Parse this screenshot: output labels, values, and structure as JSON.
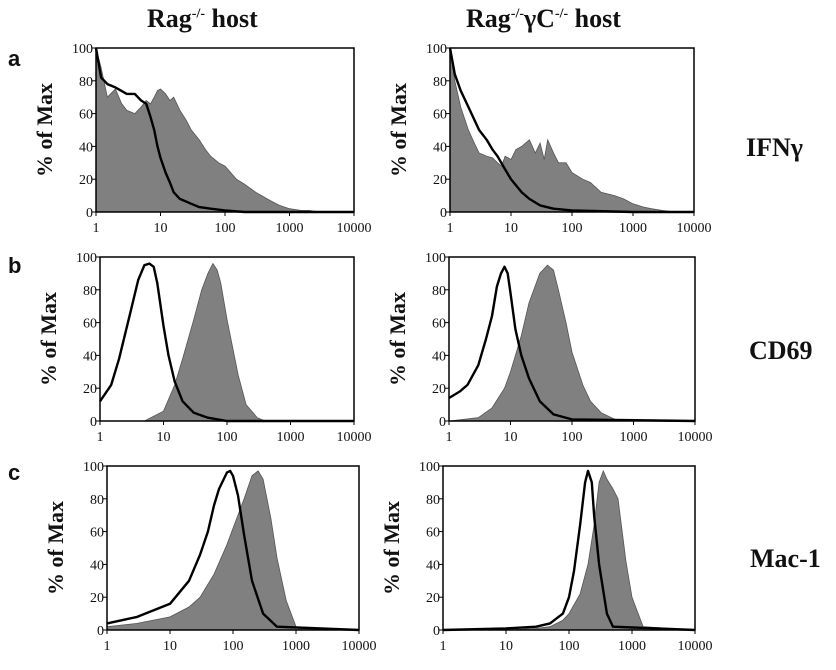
{
  "figure": {
    "column_titles": [
      {
        "base": "Rag",
        "sup": "-/-",
        "rest": " host"
      },
      {
        "base": "Rag",
        "sup": "-/-",
        "mid": "γC",
        "sup2": "-/-",
        "rest": " host"
      }
    ],
    "row_labels": [
      "IFNγ",
      "CD69",
      "Mac-1"
    ],
    "panel_letters": [
      "a",
      "b",
      "c"
    ],
    "ylabel": "% of Max",
    "colors": {
      "filled": "#808080",
      "line": "#000000"
    }
  },
  "chart_data": [
    {
      "panel": "a",
      "row": "IFNγ",
      "column": "Rag-/- host",
      "type": "area",
      "xscale": "log",
      "xlim": [
        1,
        10000
      ],
      "ylim": [
        0,
        100
      ],
      "xticks": [
        "1",
        "10",
        "100",
        "1000",
        "10000"
      ],
      "yticks": [
        "0",
        "20",
        "40",
        "60",
        "80",
        "100"
      ],
      "ylabel": "% of Max",
      "filled": {
        "x": [
          1,
          1.2,
          1.5,
          2,
          2.5,
          3,
          4,
          5,
          6,
          7,
          8,
          9,
          10,
          12,
          14,
          16,
          20,
          25,
          30,
          40,
          50,
          60,
          80,
          100,
          150,
          200,
          300,
          500,
          700,
          1000,
          1500,
          2000,
          3000,
          5000,
          10000
        ],
        "y": [
          100,
          88,
          70,
          75,
          66,
          62,
          60,
          64,
          68,
          66,
          70,
          74,
          75,
          72,
          68,
          70,
          62,
          56,
          50,
          44,
          38,
          34,
          30,
          28,
          20,
          17,
          12,
          7,
          4,
          2,
          1,
          1,
          0,
          0,
          0
        ]
      },
      "line": {
        "x": [
          1,
          1.2,
          1.5,
          2,
          3,
          4,
          5,
          6,
          7,
          8,
          9,
          10,
          12,
          14,
          16,
          20,
          30,
          40,
          60,
          100,
          200,
          1000,
          10000
        ],
        "y": [
          100,
          82,
          78,
          76,
          72,
          72,
          68,
          66,
          58,
          50,
          40,
          33,
          24,
          18,
          12,
          8,
          5,
          3,
          2,
          1,
          0,
          0,
          0
        ]
      }
    },
    {
      "panel": "a",
      "row": "IFNγ",
      "column": "Rag-/-γC-/- host",
      "type": "area",
      "xscale": "log",
      "xlim": [
        1,
        10000
      ],
      "ylim": [
        0,
        100
      ],
      "xticks": [
        "1",
        "10",
        "100",
        "1000",
        "10000"
      ],
      "yticks": [
        "0",
        "20",
        "40",
        "60",
        "80",
        "100"
      ],
      "ylabel": "% of Max",
      "filled": {
        "x": [
          1,
          1.2,
          1.5,
          2,
          2.5,
          3,
          4,
          5,
          6,
          7,
          8,
          10,
          12,
          15,
          20,
          25,
          30,
          35,
          40,
          50,
          60,
          80,
          100,
          150,
          200,
          300,
          500,
          700,
          1000,
          1500,
          2000,
          3000,
          5000,
          10000
        ],
        "y": [
          100,
          80,
          64,
          50,
          42,
          36,
          34,
          33,
          30,
          28,
          34,
          32,
          38,
          40,
          44,
          36,
          42,
          32,
          44,
          36,
          30,
          30,
          24,
          20,
          18,
          12,
          10,
          8,
          5,
          3,
          2,
          1,
          0,
          0
        ]
      },
      "line": {
        "x": [
          1,
          1.2,
          1.5,
          2,
          3,
          4,
          5,
          6,
          8,
          10,
          15,
          20,
          30,
          50,
          100,
          1000,
          10000
        ],
        "y": [
          100,
          84,
          74,
          64,
          50,
          44,
          38,
          34,
          26,
          20,
          12,
          8,
          4,
          2,
          1,
          0,
          0
        ]
      }
    },
    {
      "panel": "b",
      "row": "CD69",
      "column": "Rag-/- host",
      "type": "area",
      "xscale": "log",
      "xlim": [
        1,
        10000
      ],
      "ylim": [
        0,
        100
      ],
      "xticks": [
        "1",
        "10",
        "100",
        "1000",
        "10000"
      ],
      "yticks": [
        "0",
        "20",
        "40",
        "60",
        "80",
        "100"
      ],
      "ylabel": "% of Max",
      "filled": {
        "x": [
          1,
          5,
          10,
          15,
          20,
          30,
          40,
          50,
          60,
          70,
          80,
          100,
          150,
          200,
          300,
          400,
          10000
        ],
        "y": [
          0,
          0,
          6,
          22,
          38,
          62,
          80,
          90,
          96,
          92,
          84,
          62,
          28,
          10,
          2,
          0,
          0
        ]
      },
      "line": {
        "x": [
          1,
          1.5,
          2,
          3,
          4,
          5,
          6,
          7,
          8,
          10,
          12,
          15,
          20,
          30,
          50,
          100,
          10000
        ],
        "y": [
          12,
          22,
          38,
          66,
          86,
          95,
          96,
          94,
          84,
          58,
          40,
          24,
          12,
          5,
          2,
          0,
          0
        ]
      }
    },
    {
      "panel": "b",
      "row": "CD69",
      "column": "Rag-/-γC-/- host",
      "type": "area",
      "xscale": "log",
      "xlim": [
        1,
        10000
      ],
      "ylim": [
        0,
        100
      ],
      "xticks": [
        "1",
        "10",
        "100",
        "1000",
        "10000"
      ],
      "yticks": [
        "0",
        "20",
        "40",
        "60",
        "80",
        "100"
      ],
      "ylabel": "% of Max",
      "filled": {
        "x": [
          1,
          3,
          5,
          8,
          10,
          15,
          20,
          30,
          40,
          50,
          60,
          80,
          100,
          150,
          200,
          300,
          500,
          1000,
          10000
        ],
        "y": [
          0,
          2,
          8,
          20,
          30,
          52,
          72,
          90,
          95,
          92,
          80,
          60,
          42,
          22,
          12,
          5,
          1,
          0,
          0
        ]
      },
      "line": {
        "x": [
          1,
          1.5,
          2,
          3,
          4,
          5,
          6,
          7,
          8,
          9,
          10,
          12,
          15,
          20,
          30,
          50,
          100,
          10000
        ],
        "y": [
          14,
          18,
          22,
          34,
          50,
          64,
          82,
          90,
          94,
          90,
          78,
          56,
          40,
          26,
          12,
          4,
          1,
          0
        ]
      }
    },
    {
      "panel": "c",
      "row": "Mac-1",
      "column": "Rag-/- host",
      "type": "area",
      "xscale": "log",
      "xlim": [
        1,
        10000
      ],
      "ylim": [
        0,
        100
      ],
      "xticks": [
        "1",
        "10",
        "100",
        "1000",
        "10000"
      ],
      "yticks": [
        "0",
        "20",
        "40",
        "60",
        "80",
        "100"
      ],
      "ylabel": "% of Max",
      "filled": {
        "x": [
          1,
          3,
          10,
          20,
          30,
          50,
          80,
          100,
          150,
          200,
          250,
          300,
          400,
          500,
          700,
          1000,
          10000
        ],
        "y": [
          2,
          4,
          8,
          14,
          20,
          34,
          52,
          62,
          80,
          94,
          97,
          92,
          68,
          44,
          18,
          2,
          0
        ]
      },
      "line": {
        "x": [
          1,
          3,
          10,
          20,
          30,
          40,
          50,
          60,
          80,
          90,
          100,
          120,
          150,
          200,
          300,
          500,
          10000
        ],
        "y": [
          4,
          8,
          16,
          30,
          46,
          60,
          76,
          86,
          96,
          97,
          94,
          82,
          58,
          30,
          10,
          2,
          0
        ]
      }
    },
    {
      "panel": "c",
      "row": "Mac-1",
      "column": "Rag-/-γC-/- host",
      "type": "area",
      "xscale": "log",
      "xlim": [
        1,
        10000
      ],
      "ylim": [
        0,
        100
      ],
      "xticks": [
        "1",
        "10",
        "100",
        "1000",
        "10000"
      ],
      "yticks": [
        "0",
        "20",
        "40",
        "60",
        "80",
        "100"
      ],
      "ylabel": "% of Max",
      "filled": {
        "x": [
          1,
          10,
          30,
          50,
          80,
          100,
          150,
          200,
          250,
          300,
          350,
          400,
          500,
          600,
          700,
          800,
          1000,
          1500,
          10000
        ],
        "y": [
          0,
          0,
          1,
          2,
          6,
          10,
          22,
          40,
          64,
          90,
          97,
          92,
          86,
          80,
          60,
          42,
          20,
          2,
          0
        ]
      },
      "line": {
        "x": [
          1,
          10,
          30,
          50,
          80,
          100,
          120,
          150,
          180,
          200,
          230,
          250,
          300,
          400,
          500,
          10000
        ],
        "y": [
          0,
          1,
          2,
          4,
          10,
          20,
          36,
          64,
          90,
          97,
          90,
          70,
          40,
          10,
          2,
          0
        ]
      }
    }
  ]
}
